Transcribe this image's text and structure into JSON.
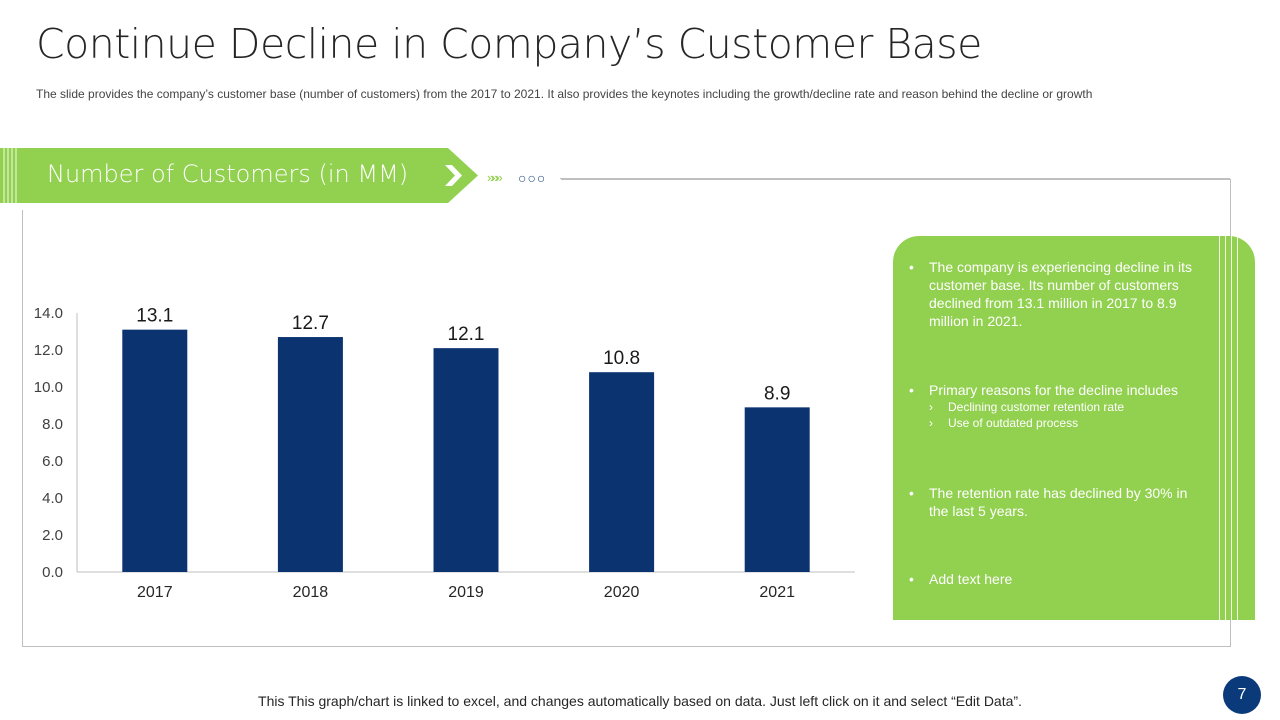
{
  "title": "Continue Decline in Company’s Customer Base",
  "subtitle": "The slide provides  the company’s customer base (number  of customers) from  the  2017 to 2021.  It also provides  the keynotes including  the growth/decline  rate and reason  behind  the decline or growth",
  "banner": {
    "label": "Number of Customers (in MM)",
    "chevrons": "»»»",
    "dots": "○○○"
  },
  "colors": {
    "bar": "#0b3370",
    "accent": "#92d050",
    "badge": "#0b3a7a"
  },
  "chart_data": {
    "type": "bar",
    "title": "Number of Customers (in MM)",
    "categories": [
      "2017",
      "2018",
      "2019",
      "2020",
      "2021"
    ],
    "values": [
      13.1,
      12.7,
      12.1,
      10.8,
      8.9
    ],
    "data_labels": [
      "13.1",
      "12.7",
      "12.1",
      "10.8",
      "8.9"
    ],
    "yticks": [
      "0.0",
      "2.0",
      "4.0",
      "6.0",
      "8.0",
      "10.0",
      "12.0",
      "14.0"
    ],
    "ylim": [
      0,
      14
    ],
    "xlabel": "",
    "ylabel": "",
    "grid": false,
    "legend": "none"
  },
  "notes": [
    {
      "text": "The company is experiencing  decline in its customer base. Its number of customers declined from 13.1  million in 2017  to 8.9 million in 2021.",
      "subs": []
    },
    {
      "text": "Primary reasons for the decline includes",
      "subs": [
        "Declining customer retention rate",
        "Use of outdated process"
      ]
    },
    {
      "text": "The retention rate has declined by 30% in the last 5 years.",
      "subs": []
    },
    {
      "text": "Add text here",
      "subs": []
    }
  ],
  "notes_bullet": "•",
  "notes_sub_bullet": "›",
  "footer": "This This graph/chart is linked to excel, and changes automatically based on data. Just left click on it and select “Edit Data”.",
  "page_number": "7"
}
